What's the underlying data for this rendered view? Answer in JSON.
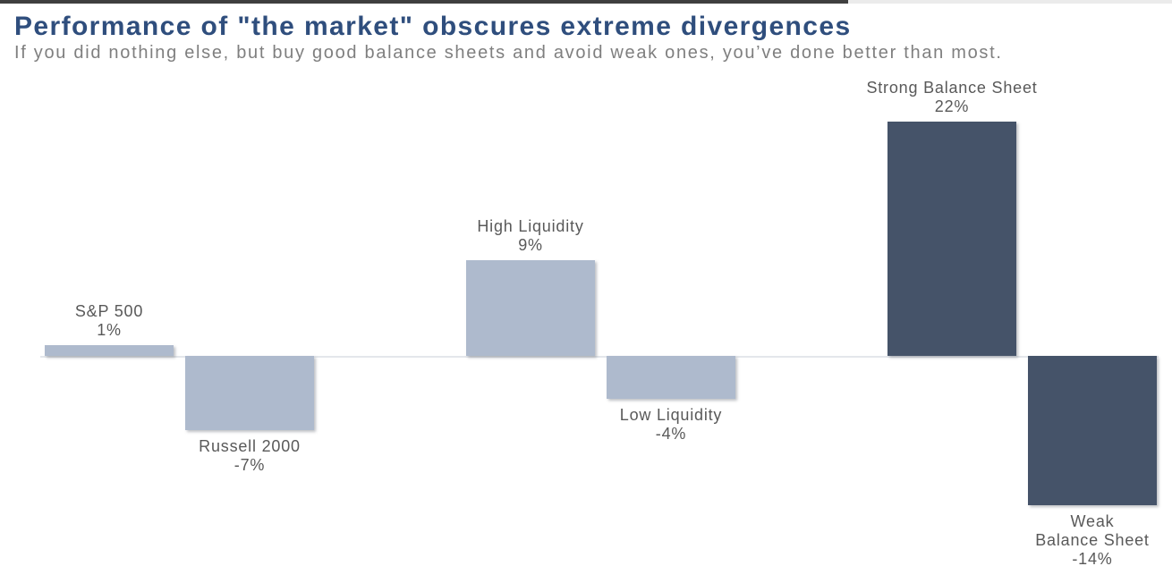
{
  "header": {
    "title": "Performance of \"the market\" obscures extreme divergences",
    "subtitle": "If you did nothing else, but buy good balance sheets and avoid weak ones, you’ve done better than most."
  },
  "colors": {
    "title": "#2F4E7D",
    "subtitle": "#7F7F7F",
    "label": "#595959",
    "axis_line": "#E4E7EB",
    "bar_light": "#AEBACD",
    "bar_dark": "#455369",
    "top_strip_dark": "#3F3F3F",
    "top_strip_light": "#EBEBEB"
  },
  "chart_data": {
    "type": "bar",
    "title": "Performance of \"the market\" obscures extreme divergences",
    "subtitle": "If you did nothing else, but buy good balance sheets and avoid weak ones, you’ve done better than most.",
    "categories": [
      "S&P 500",
      "Russell 2000",
      "High Liquidity",
      "Low Liquidity",
      "Strong Balance Sheet",
      "Weak Balance Sheet"
    ],
    "values": [
      1,
      -7,
      9,
      -4,
      22,
      -14
    ],
    "ylim": [
      -16,
      24
    ],
    "baseline": 0,
    "grid": false,
    "legend": false,
    "xlabel": "",
    "ylabel": "",
    "bars": [
      {
        "category": "S&P 500",
        "value": 1,
        "value_label": "1%",
        "name_lines": [
          "S&P 500"
        ],
        "color": "light",
        "label_position": "above",
        "slot": 0
      },
      {
        "category": "Russell 2000",
        "value": -7,
        "value_label": "-7%",
        "name_lines": [
          "Russell 2000"
        ],
        "color": "light",
        "label_position": "below",
        "slot": 1
      },
      {
        "category": "High Liquidity",
        "value": 9,
        "value_label": "9%",
        "name_lines": [
          "High Liquidity"
        ],
        "color": "light",
        "label_position": "above",
        "slot": 3
      },
      {
        "category": "Low Liquidity",
        "value": -4,
        "value_label": "-4%",
        "name_lines": [
          "Low Liquidity"
        ],
        "color": "light",
        "label_position": "below",
        "slot": 4
      },
      {
        "category": "Strong Balance Sheet",
        "value": 22,
        "value_label": "22%",
        "name_lines": [
          "Strong Balance Sheet"
        ],
        "color": "dark",
        "label_position": "above",
        "slot": 6
      },
      {
        "category": "Weak Balance Sheet",
        "value": -14,
        "value_label": "-14%",
        "name_lines": [
          "Weak",
          "Balance Sheet"
        ],
        "color": "dark",
        "label_position": "below",
        "slot": 7
      }
    ]
  }
}
